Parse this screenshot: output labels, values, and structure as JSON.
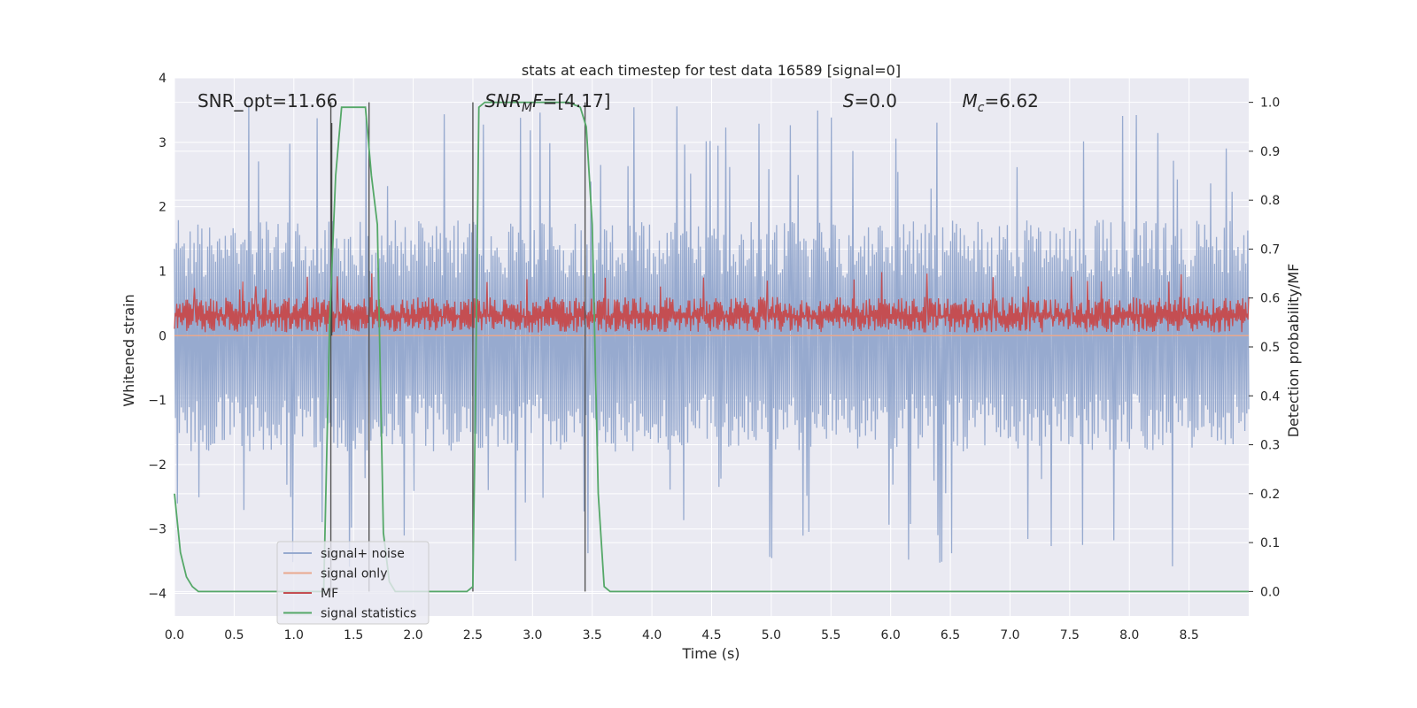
{
  "chart_data": {
    "type": "line",
    "title": "stats at each timestep for test data 16589 [signal=0]",
    "xlabel": "Time (s)",
    "ylabel_left": "Whitened strain",
    "ylabel_right": "Detection probability/MF",
    "xlim": [
      0.0,
      9.0
    ],
    "ylim_left": [
      -4.35,
      4.0
    ],
    "ylim_right": [
      -0.05,
      1.05
    ],
    "x_ticks": [
      "0.0",
      "0.5",
      "1.0",
      "1.5",
      "2.0",
      "2.5",
      "3.0",
      "3.5",
      "4.0",
      "4.5",
      "5.0",
      "5.5",
      "6.0",
      "6.5",
      "7.0",
      "7.5",
      "8.0",
      "8.5"
    ],
    "y_ticks_left": [
      "4",
      "3",
      "2",
      "1",
      "0",
      "−1",
      "−2",
      "−3",
      "−4"
    ],
    "y_ticks_right": [
      "1.0",
      "0.9",
      "0.8",
      "0.7",
      "0.6",
      "0.5",
      "0.4",
      "0.3",
      "0.2",
      "0.1",
      "0.0"
    ],
    "grid": true,
    "legend_position": "lower-left",
    "annotations": [
      {
        "id": "snr-opt",
        "text": "SNR_opt=11.66",
        "x": 0.2
      },
      {
        "id": "snr-mf",
        "text": "=[4.17]",
        "x": 2.6,
        "math": {
          "base": "SNR",
          "sub": "M",
          "rest": "F"
        }
      },
      {
        "id": "s-val",
        "text": "=0.0",
        "x": 5.6,
        "math": {
          "base": "S",
          "sub": "",
          "rest": ""
        }
      },
      {
        "id": "mc-val",
        "text": "=6.62",
        "x": 6.6,
        "math": {
          "base": "M",
          "sub": "c",
          "rest": ""
        }
      }
    ],
    "vertical_lines_x": [
      1.31,
      1.63,
      2.5,
      3.44
    ],
    "short_vertical_line": {
      "x": 1.31,
      "y_top": 3.3
    },
    "series": [
      {
        "name": "signal+ noise",
        "color": "#97aacf",
        "kind": "noise",
        "amplitude_typ": 1.0,
        "amplitude_max": 3.6,
        "y_min": -4.1
      },
      {
        "name": "signal only",
        "color": "#e9a88e",
        "kind": "flat",
        "value": 0.0
      },
      {
        "name": "MF",
        "color": "#c44e52",
        "kind": "band",
        "low": 0.05,
        "high": 0.6,
        "peak": 1.0
      },
      {
        "name": "signal statistics",
        "color": "#55a868",
        "kind": "probability",
        "x": [
          0.0,
          0.05,
          0.1,
          0.15,
          0.2,
          0.3,
          0.5,
          1.0,
          1.2,
          1.25,
          1.3,
          1.35,
          1.4,
          1.55,
          1.6,
          1.65,
          1.7,
          1.75,
          1.8,
          1.85,
          2.0,
          2.3,
          2.45,
          2.5,
          2.52,
          2.55,
          2.6,
          3.3,
          3.4,
          3.45,
          3.5,
          3.55,
          3.6,
          3.65,
          4.0,
          6.0,
          9.0
        ],
        "y": [
          0.2,
          0.08,
          0.03,
          0.01,
          0.0,
          0.0,
          0.0,
          0.0,
          0.0,
          0.0,
          0.55,
          0.85,
          0.99,
          0.99,
          0.99,
          0.85,
          0.75,
          0.12,
          0.02,
          0.0,
          0.0,
          0.0,
          0.0,
          0.01,
          0.35,
          0.99,
          1.0,
          1.0,
          0.99,
          0.95,
          0.75,
          0.2,
          0.01,
          0.0,
          0.0,
          0.0,
          0.0
        ]
      }
    ]
  }
}
